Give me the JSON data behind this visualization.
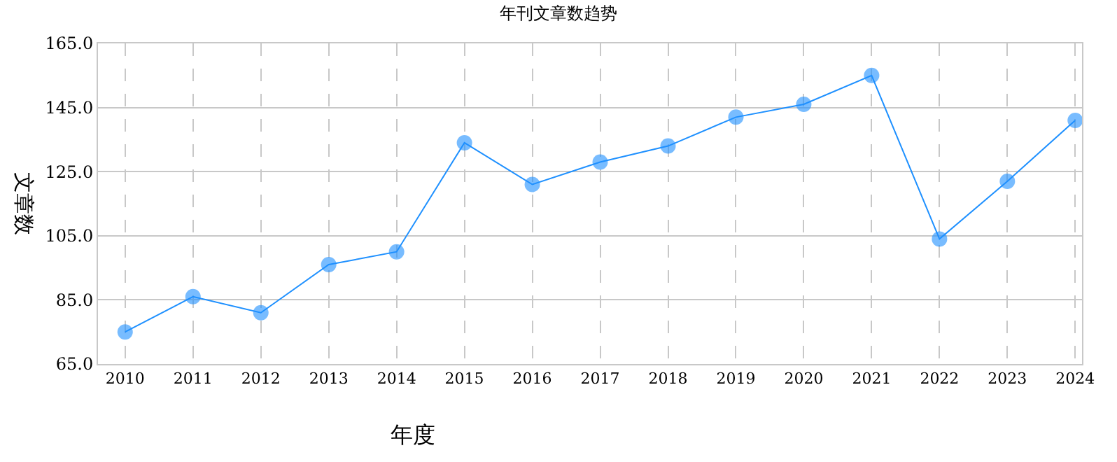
{
  "chart_data": {
    "type": "line",
    "title": "年刊文章数趋势",
    "xlabel": "年度",
    "ylabel": "文章数",
    "categories": [
      "2010",
      "2011",
      "2012",
      "2013",
      "2014",
      "2015",
      "2016",
      "2017",
      "2018",
      "2019",
      "2020",
      "2021",
      "2022",
      "2023",
      "2024"
    ],
    "series": [
      {
        "color": "#1e90ff",
        "values": [
          75,
          86,
          81,
          96,
          100,
          134,
          121,
          128,
          133,
          142,
          146,
          155,
          104,
          122,
          141
        ]
      }
    ],
    "ylim": [
      65,
      165
    ],
    "yticks": [
      {
        "value": 65,
        "label": "65.0"
      },
      {
        "value": 85,
        "label": "85.0"
      },
      {
        "value": 105,
        "label": "105.0"
      },
      {
        "value": 125,
        "label": "125.0"
      },
      {
        "value": 145,
        "label": "145.0"
      },
      {
        "value": 165,
        "label": "165.0"
      }
    ],
    "grid": true,
    "marker": "circle",
    "line_style": "solid",
    "legend": false
  }
}
